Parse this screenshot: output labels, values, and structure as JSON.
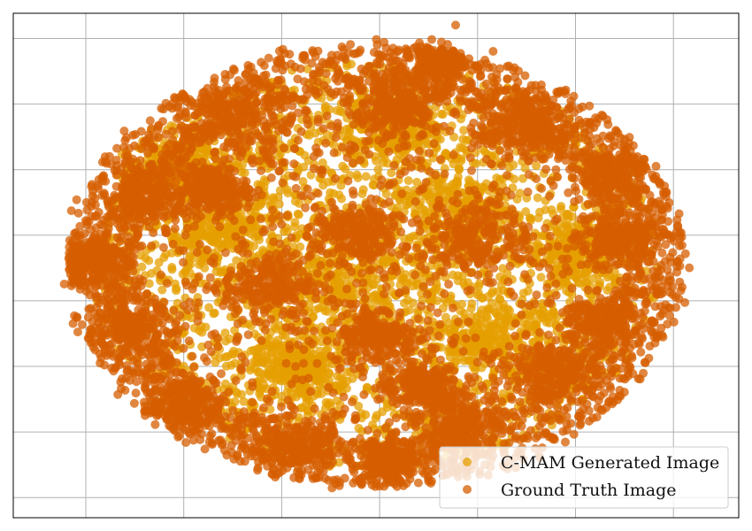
{
  "chart_data": {
    "type": "scatter",
    "title": "",
    "xlabel": "",
    "ylabel": "",
    "xlim": [
      -100,
      100
    ],
    "ylim": [
      -100,
      100
    ],
    "grid": true,
    "xticks": [
      -80,
      -53,
      -26,
      1,
      28,
      55,
      82
    ],
    "yticks": [
      -92,
      -66,
      -40,
      -14,
      12,
      38,
      64,
      90
    ],
    "tick_labels_shown": false,
    "legend": {
      "position": "bottom-right",
      "entries": [
        "C-MAM Generated Image",
        "Ground Truth Image"
      ]
    },
    "cloud_shape": {
      "center": [
        0,
        0
      ],
      "semi_axis_x": 85,
      "semi_axis_y": 88,
      "description_of_density": "dense overlapping point cloud forming an ellipse"
    },
    "series": [
      {
        "name": "C-MAM Generated Image",
        "color": "#E69F00",
        "marker": "circle",
        "approx_point_count": 5000,
        "distribution": "fills ellipse interior, visible mainly in gaps near the center",
        "sample_clusters": [
          {
            "x": -42,
            "y": 12,
            "spread": 14
          },
          {
            "x": -8,
            "y": -6,
            "spread": 18
          },
          {
            "x": 22,
            "y": 20,
            "spread": 14
          },
          {
            "x": -22,
            "y": -40,
            "spread": 12
          },
          {
            "x": 30,
            "y": -30,
            "spread": 14
          },
          {
            "x": 55,
            "y": 5,
            "spread": 10
          },
          {
            "x": -55,
            "y": 40,
            "spread": 10
          },
          {
            "x": 5,
            "y": 55,
            "spread": 10
          }
        ]
      },
      {
        "name": "Ground Truth Image",
        "color": "#D55E00",
        "marker": "circle",
        "approx_point_count": 5000,
        "distribution": "dense clusters across the full ellipse, concentrated toward the rim",
        "sample_clusters": [
          {
            "x": 18,
            "y": 82,
            "spread": 8
          },
          {
            "x": 6,
            "y": 62,
            "spread": 10
          },
          {
            "x": -38,
            "y": 58,
            "spread": 12
          },
          {
            "x": -62,
            "y": 28,
            "spread": 10
          },
          {
            "x": -78,
            "y": 2,
            "spread": 8
          },
          {
            "x": -68,
            "y": -25,
            "spread": 10
          },
          {
            "x": -52,
            "y": -55,
            "spread": 9
          },
          {
            "x": -22,
            "y": -72,
            "spread": 10
          },
          {
            "x": 4,
            "y": -78,
            "spread": 8
          },
          {
            "x": 24,
            "y": -62,
            "spread": 10
          },
          {
            "x": 48,
            "y": -42,
            "spread": 10
          },
          {
            "x": 62,
            "y": -22,
            "spread": 9
          },
          {
            "x": 66,
            "y": 10,
            "spread": 8
          },
          {
            "x": 65,
            "y": 36,
            "spread": 10
          },
          {
            "x": 40,
            "y": 55,
            "spread": 10
          },
          {
            "x": 28,
            "y": 12,
            "spread": 12
          },
          {
            "x": -5,
            "y": 12,
            "spread": 10
          },
          {
            "x": -30,
            "y": -8,
            "spread": 10
          },
          {
            "x": 0,
            "y": -28,
            "spread": 10
          },
          {
            "x": -45,
            "y": 30,
            "spread": 8
          },
          {
            "x": 12,
            "y": -48,
            "spread": 9
          }
        ]
      }
    ]
  }
}
